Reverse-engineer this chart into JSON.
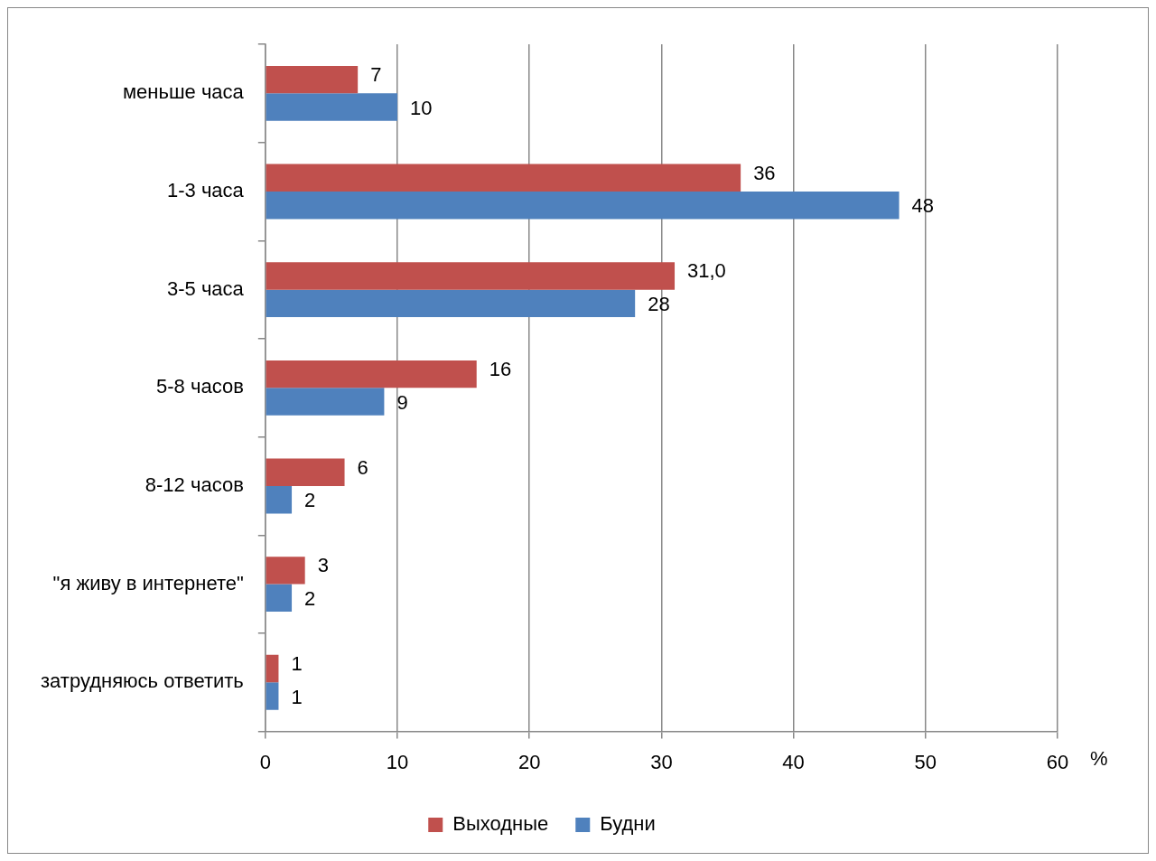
{
  "chart_data": {
    "type": "bar",
    "orientation": "horizontal",
    "xlabel": "%",
    "categories": [
      "меньше часа",
      "1-3 часа",
      "3-5 часа",
      "5-8 часов",
      "8-12 часов",
      "\"я живу в интернете\"",
      "затрудняюсь ответить"
    ],
    "series": [
      {
        "name": "Выходные",
        "color": "#c0504d",
        "values": [
          7,
          36,
          31,
          16,
          6,
          3,
          1
        ],
        "value_labels": [
          "7",
          "36",
          "31,0",
          "16",
          "6",
          "3",
          "1"
        ]
      },
      {
        "name": "Будни",
        "color": "#4f81bd",
        "values": [
          10,
          48,
          28,
          9,
          2,
          2,
          1
        ],
        "value_labels": [
          "10",
          "48",
          "28",
          "9",
          "2",
          "2",
          "1"
        ]
      }
    ],
    "xlim": [
      0,
      60
    ],
    "xticks": [
      0,
      10,
      20,
      30,
      40,
      50,
      60
    ],
    "grid": "x",
    "legend": "bottom"
  }
}
